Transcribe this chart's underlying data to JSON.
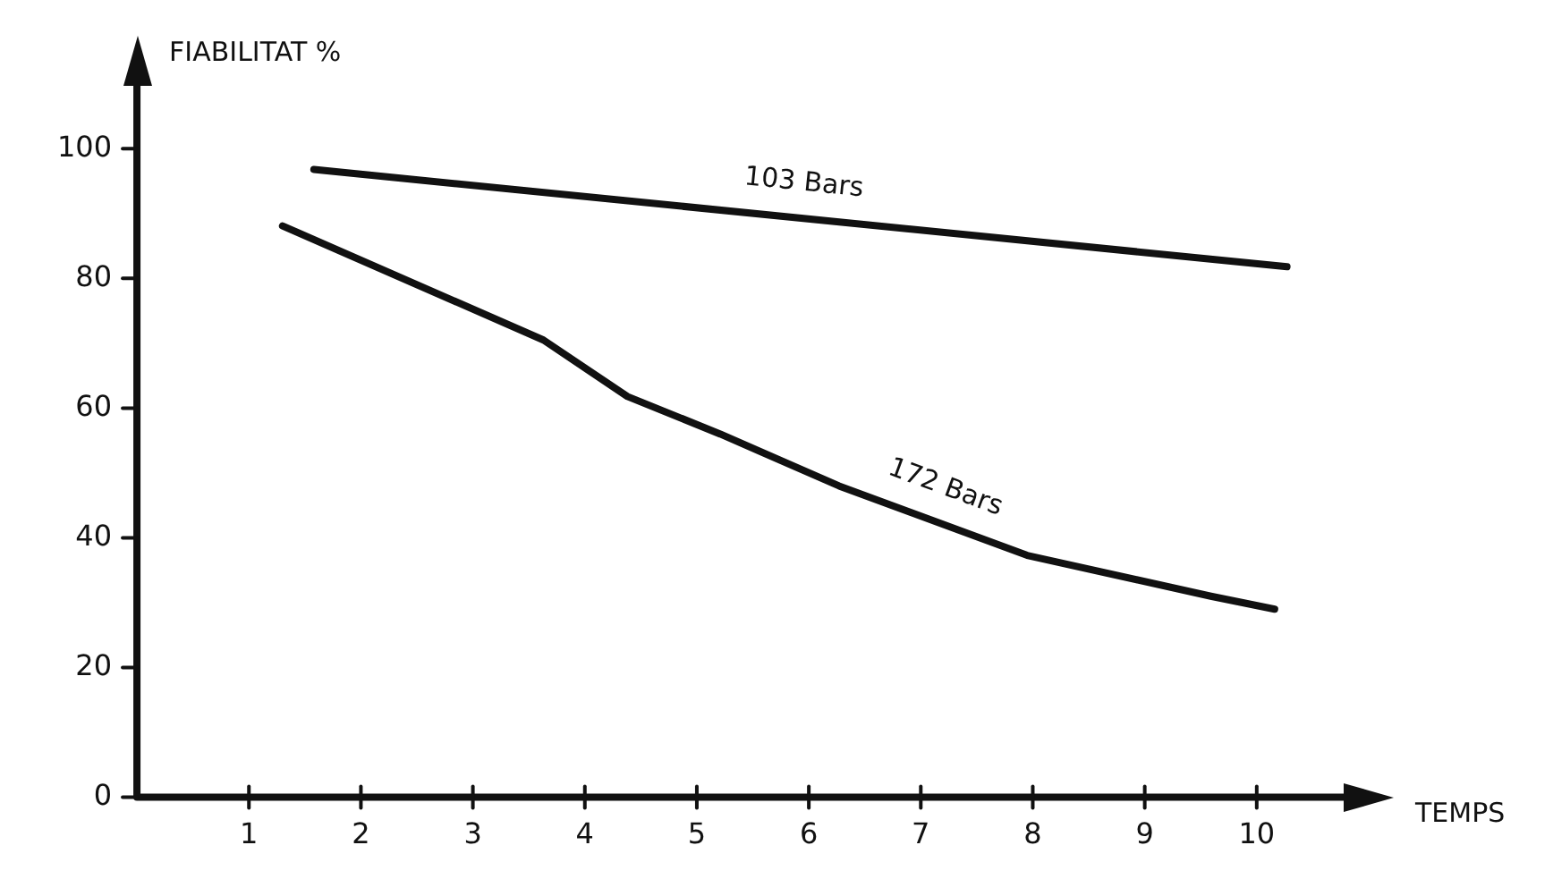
{
  "chart_data": {
    "type": "line",
    "xlabel": "TEMPS",
    "ylabel": "FIABILITAT %",
    "xlim": [
      0,
      11
    ],
    "xticks": [
      1,
      2,
      3,
      4,
      5,
      6,
      7,
      8,
      9,
      10
    ],
    "ylim": [
      0,
      113
    ],
    "yticks": [
      0,
      20,
      40,
      60,
      80,
      100
    ],
    "grid": false,
    "legend": false,
    "marker": "none",
    "line_style": "solid",
    "series": [
      {
        "name": "103 Bars",
        "color": "#111111",
        "x": [
          1.58,
          10.27
        ],
        "values": [
          96.8,
          81.8
        ]
      },
      {
        "name": "172 Bars",
        "color": "#111111",
        "x": [
          1.3,
          3.63,
          4.38,
          5.21,
          6.27,
          7.95,
          9.59,
          10.16
        ],
        "values": [
          88.1,
          70.5,
          61.8,
          56,
          48,
          37.3,
          31,
          29
        ]
      }
    ]
  }
}
